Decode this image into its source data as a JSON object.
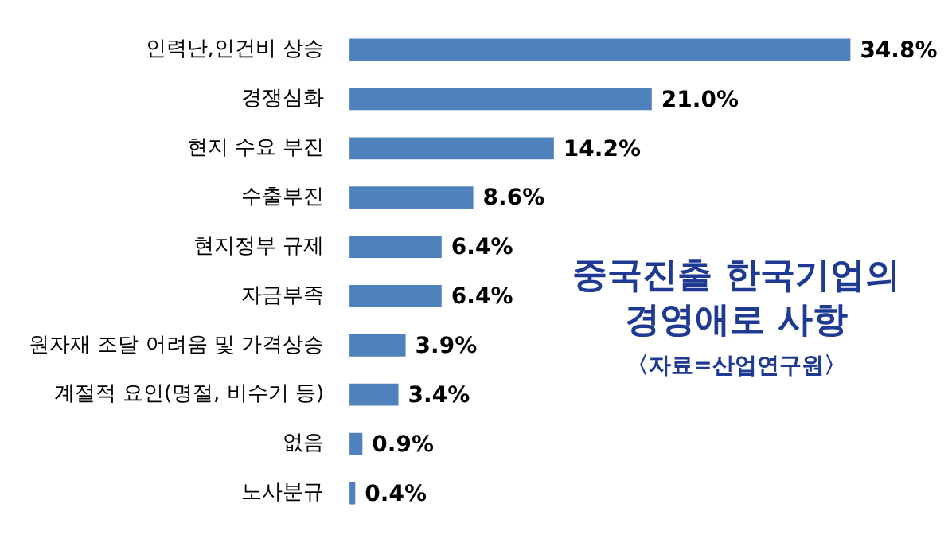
{
  "chart_data": {
    "type": "bar",
    "orientation": "horizontal",
    "title": "중국진출 한국기업의 경영애로 사항",
    "subtitle": "〈자료=산업연구원〉",
    "categories": [
      "인력난,인건비 상승",
      "경쟁심화",
      "현지 수요 부진",
      "수출부진",
      "현지정부 규제",
      "자금부족",
      "원자재 조달 어려움 및 가격상승",
      "계절적 요인(명절, 비수기 등)",
      "없음",
      "노사분규"
    ],
    "values": [
      34.8,
      21.0,
      14.2,
      8.6,
      6.4,
      6.4,
      3.9,
      3.4,
      0.9,
      0.4
    ],
    "value_labels": [
      "34.8%",
      "21.0%",
      "14.2%",
      "8.6%",
      "6.4%",
      "6.4%",
      "3.9%",
      "3.4%",
      "0.9%",
      "0.4%"
    ],
    "color": "#4f81bd",
    "tick_labels": "y"
  }
}
